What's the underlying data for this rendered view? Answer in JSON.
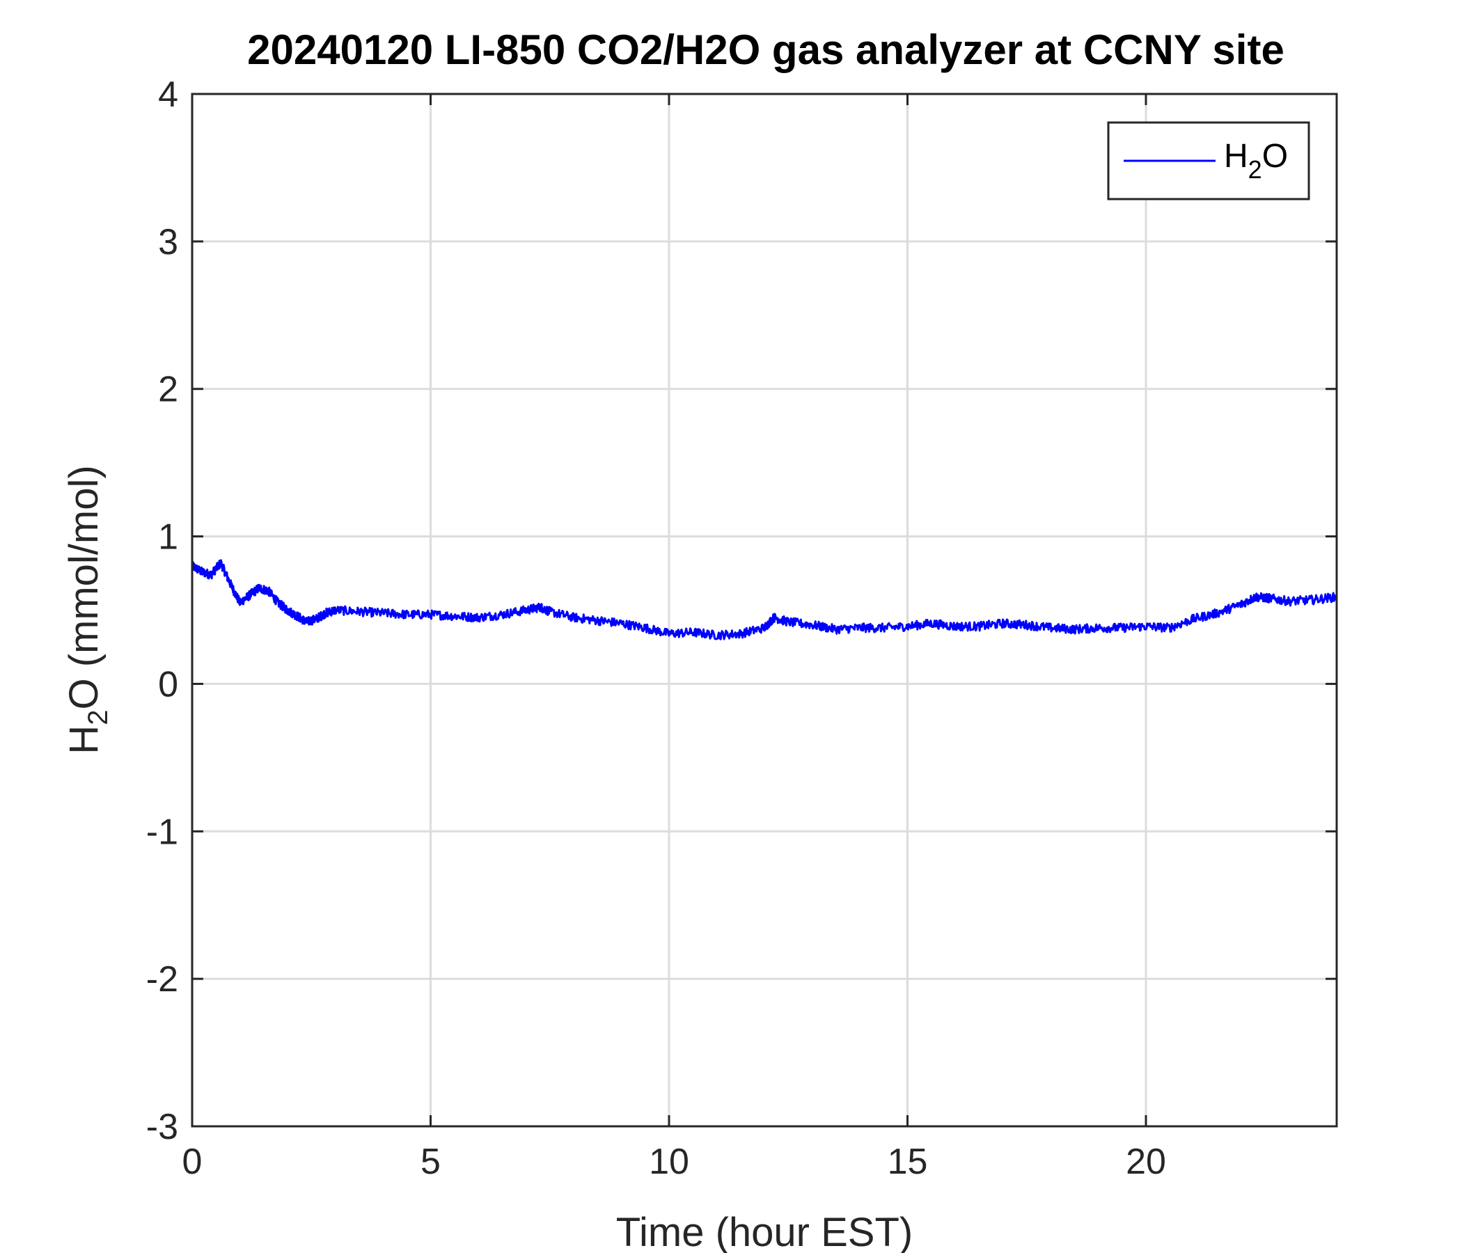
{
  "chart_data": {
    "type": "line",
    "title": "20240120 LI-850 CO2/H2O gas analyzer at CCNY site",
    "xlabel": "Time (hour EST)",
    "ylabel": {
      "prefix": "H",
      "subscript": "2",
      "suffix": "O (mmol/mol)"
    },
    "xlim": [
      0,
      24
    ],
    "ylim": [
      -3,
      4
    ],
    "xticks": [
      0,
      5,
      10,
      15,
      20
    ],
    "yticks": [
      -3,
      -2,
      -1,
      0,
      1,
      2,
      3,
      4
    ],
    "grid": true,
    "legend_position": "top-right",
    "series": [
      {
        "name": {
          "prefix": "H",
          "subscript": "2",
          "suffix": "O"
        },
        "color": "#0000ff",
        "x": [
          0,
          0.2,
          0.4,
          0.6,
          0.8,
          1.0,
          1.2,
          1.4,
          1.6,
          1.8,
          2.0,
          2.2,
          2.4,
          2.6,
          2.8,
          3.0,
          3.5,
          4.0,
          4.5,
          5.0,
          5.5,
          6.0,
          6.5,
          7.0,
          7.3,
          7.5,
          8.0,
          8.5,
          9.0,
          9.5,
          10.0,
          10.5,
          11.0,
          11.5,
          12.0,
          12.2,
          12.5,
          13.0,
          13.5,
          14.0,
          14.5,
          15.0,
          15.5,
          16.0,
          16.5,
          17.0,
          17.5,
          18.0,
          18.5,
          19.0,
          19.5,
          20.0,
          20.5,
          21.0,
          21.5,
          22.0,
          22.3,
          22.6,
          23.0,
          23.5,
          24.0
        ],
        "y": [
          0.8,
          0.76,
          0.74,
          0.82,
          0.68,
          0.55,
          0.6,
          0.65,
          0.63,
          0.55,
          0.5,
          0.46,
          0.42,
          0.44,
          0.48,
          0.5,
          0.49,
          0.48,
          0.47,
          0.47,
          0.46,
          0.45,
          0.47,
          0.5,
          0.52,
          0.49,
          0.45,
          0.43,
          0.41,
          0.38,
          0.34,
          0.35,
          0.33,
          0.34,
          0.38,
          0.45,
          0.42,
          0.4,
          0.37,
          0.38,
          0.38,
          0.39,
          0.41,
          0.39,
          0.39,
          0.41,
          0.4,
          0.38,
          0.37,
          0.38,
          0.38,
          0.39,
          0.38,
          0.44,
          0.48,
          0.54,
          0.59,
          0.58,
          0.56,
          0.57,
          0.59
        ]
      }
    ]
  }
}
